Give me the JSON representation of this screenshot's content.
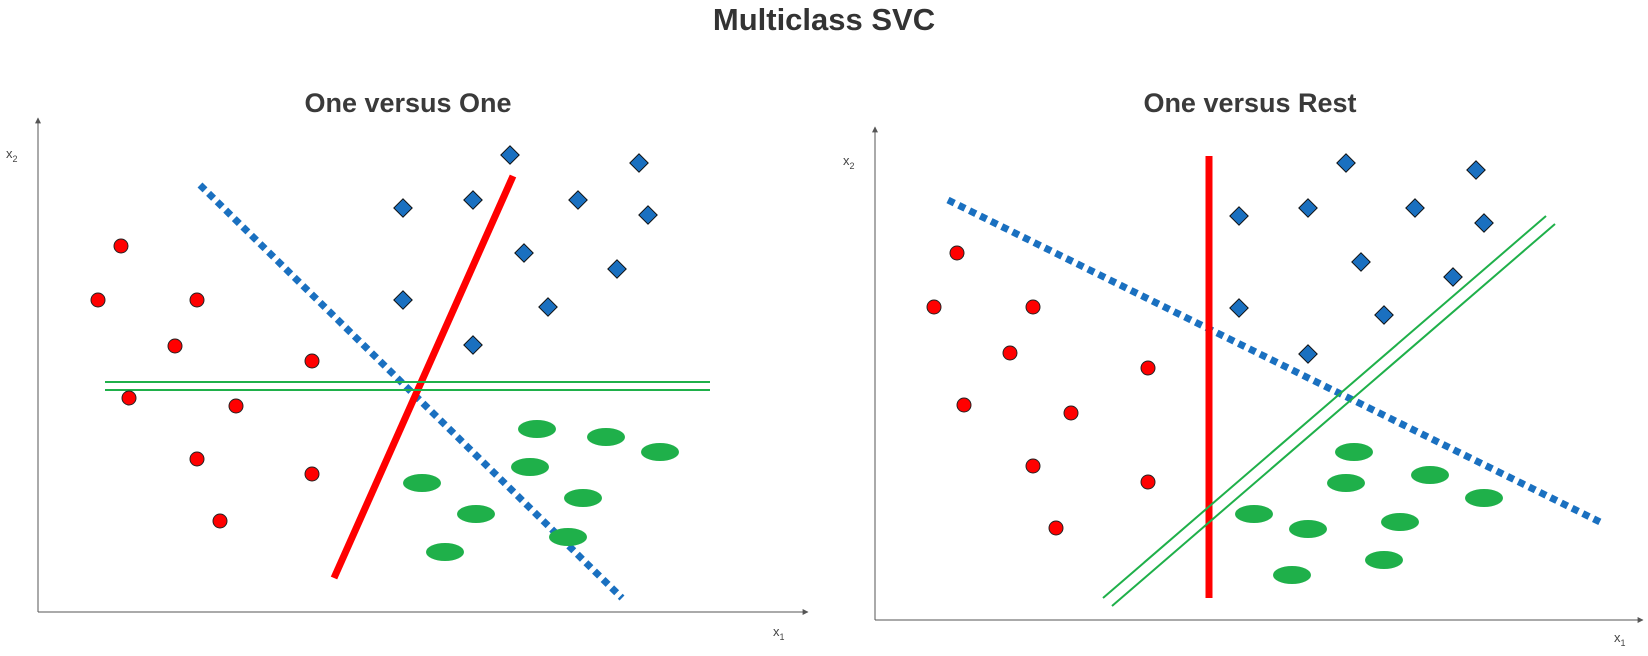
{
  "title": "Multiclass SVC",
  "panels": [
    {
      "title": "One versus One",
      "x_label": "x",
      "x_sub": "1",
      "y_label": "x",
      "y_sub": "2"
    },
    {
      "title": "One versus Rest",
      "x_label": "x",
      "x_sub": "1",
      "y_label": "x",
      "y_sub": "2"
    }
  ],
  "colors": {
    "red_class": "#ff0000",
    "blue_class": "#1a70c0",
    "green_class": "#1fb04a",
    "blue_dashed_boundary": "#1a70c0",
    "red_boundary": "#ff0000",
    "green_boundary": "#1fb04a",
    "axis": "#555555"
  }
}
